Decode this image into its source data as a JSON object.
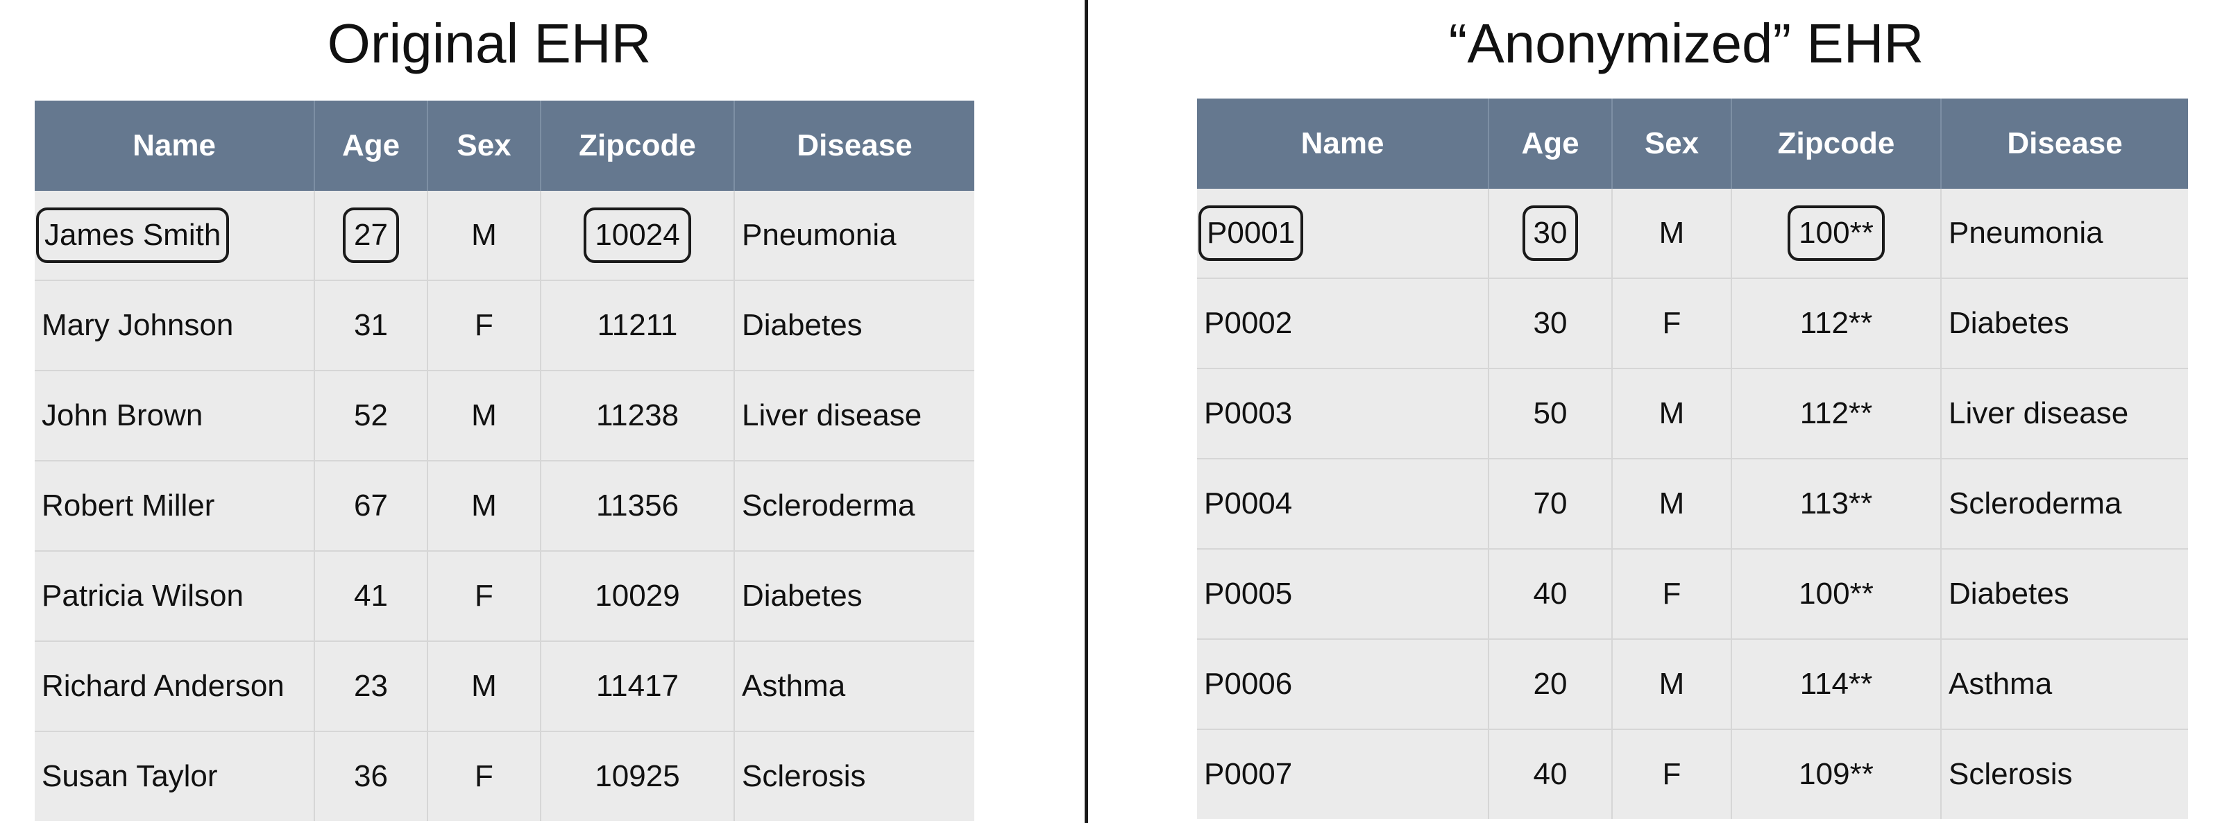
{
  "left": {
    "title": "Original EHR",
    "columns": [
      "Name",
      "Age",
      "Sex",
      "Zipcode",
      "Disease"
    ],
    "rows": [
      {
        "name": "James Smith",
        "age": "27",
        "sex": "M",
        "zipcode": "10024",
        "disease": "Pneumonia"
      },
      {
        "name": "Mary Johnson",
        "age": "31",
        "sex": "F",
        "zipcode": "11211",
        "disease": "Diabetes"
      },
      {
        "name": "John Brown",
        "age": "52",
        "sex": "M",
        "zipcode": "11238",
        "disease": "Liver disease"
      },
      {
        "name": "Robert Miller",
        "age": "67",
        "sex": "M",
        "zipcode": "11356",
        "disease": "Scleroderma"
      },
      {
        "name": "Patricia Wilson",
        "age": "41",
        "sex": "F",
        "zipcode": "10029",
        "disease": "Diabetes"
      },
      {
        "name": "Richard Anderson",
        "age": "23",
        "sex": "M",
        "zipcode": "11417",
        "disease": "Asthma"
      },
      {
        "name": "Susan Taylor",
        "age": "36",
        "sex": "F",
        "zipcode": "10925",
        "disease": "Sclerosis"
      }
    ]
  },
  "right": {
    "title": "“Anonymized” EHR",
    "columns": [
      "Name",
      "Age",
      "Sex",
      "Zipcode",
      "Disease"
    ],
    "rows": [
      {
        "name": "P0001",
        "age": "30",
        "sex": "M",
        "zipcode": "100**",
        "disease": "Pneumonia"
      },
      {
        "name": "P0002",
        "age": "30",
        "sex": "F",
        "zipcode": "112**",
        "disease": "Diabetes"
      },
      {
        "name": "P0003",
        "age": "50",
        "sex": "M",
        "zipcode": "112**",
        "disease": "Liver disease"
      },
      {
        "name": "P0004",
        "age": "70",
        "sex": "M",
        "zipcode": "113**",
        "disease": "Scleroderma"
      },
      {
        "name": "P0005",
        "age": "40",
        "sex": "F",
        "zipcode": "100**",
        "disease": "Diabetes"
      },
      {
        "name": "P0006",
        "age": "20",
        "sex": "M",
        "zipcode": "114**",
        "disease": "Asthma"
      },
      {
        "name": "P0007",
        "age": "40",
        "sex": "F",
        "zipcode": "109**",
        "disease": "Sclerosis"
      }
    ]
  },
  "colors": {
    "header_bg": "#65788f",
    "cell_bg": "#ebebeb",
    "divider": "#1a1a1a"
  }
}
